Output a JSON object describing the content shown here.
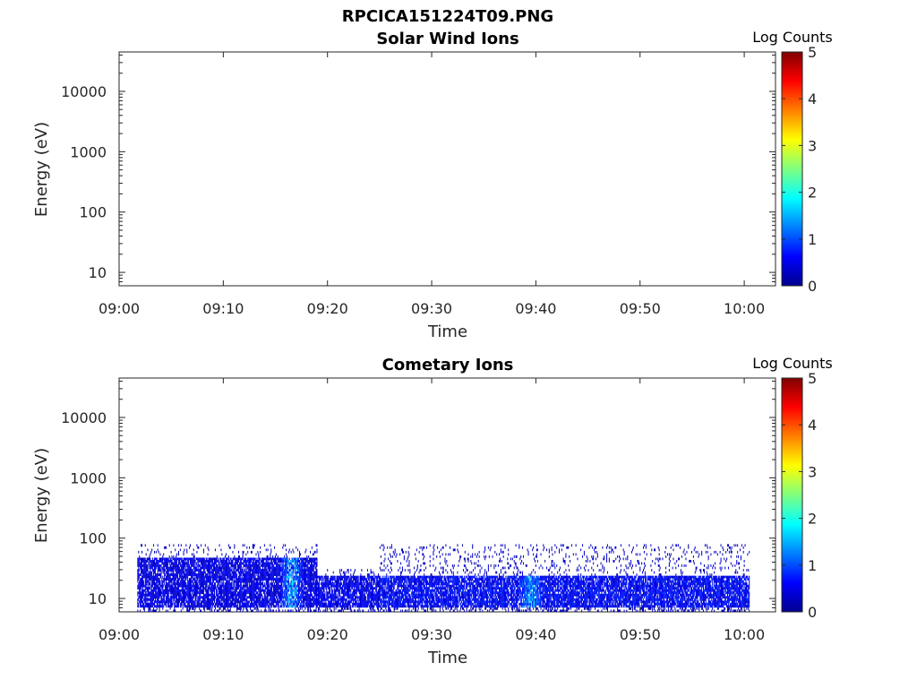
{
  "figure": {
    "title": "RPCICA151224T09.PNG"
  },
  "chart_data": [
    {
      "type": "heatmap",
      "title": "Solar Wind Ions",
      "xlabel": "Time",
      "ylabel": "Energy (eV)",
      "yscale": "log",
      "ylim": [
        6,
        45000
      ],
      "xlim": [
        "09:00",
        "10:03"
      ],
      "x_ticks": [
        "09:00",
        "09:10",
        "09:20",
        "09:30",
        "09:40",
        "09:50",
        "10:00"
      ],
      "y_ticks": [
        "10",
        "100",
        "1000",
        "10000"
      ],
      "colorbar": {
        "label": "Log Counts",
        "min": 0,
        "max": 5,
        "ticks": [
          "0",
          "1",
          "2",
          "3",
          "4",
          "5"
        ],
        "colormap": "jet"
      },
      "data_present": false,
      "values": []
    },
    {
      "type": "heatmap",
      "title": "Cometary Ions",
      "xlabel": "Time",
      "ylabel": "Energy (eV)",
      "yscale": "log",
      "ylim": [
        6,
        45000
      ],
      "xlim": [
        "09:00",
        "10:03"
      ],
      "x_ticks": [
        "09:00",
        "09:10",
        "09:20",
        "09:30",
        "09:40",
        "09:50",
        "10:00"
      ],
      "y_ticks": [
        "10",
        "100",
        "1000",
        "10000"
      ],
      "colorbar": {
        "label": "Log Counts",
        "min": 0,
        "max": 5,
        "ticks": [
          "0",
          "1",
          "2",
          "3",
          "4",
          "5"
        ],
        "colormap": "jet"
      },
      "data_present": true,
      "segments": [
        {
          "start": "09:01:45",
          "end": "09:19:00",
          "e_low": 7,
          "e_high": 45,
          "e_sparse_max": 80,
          "level": 0.55
        },
        {
          "start": "09:19:00",
          "end": "09:25:00",
          "e_low": 7,
          "e_high": 22,
          "e_sparse_max": 30,
          "level": 0.6
        },
        {
          "start": "09:25:00",
          "end": "10:00:30",
          "e_low": 7,
          "e_high": 22,
          "e_sparse_max": 80,
          "level": 0.7
        }
      ],
      "peaks": [
        {
          "time": "09:16:30",
          "e_low": 9,
          "e_high": 40,
          "level": 1.7
        },
        {
          "time": "09:39:30",
          "e_low": 8,
          "e_high": 20,
          "level": 1.4
        }
      ]
    }
  ]
}
